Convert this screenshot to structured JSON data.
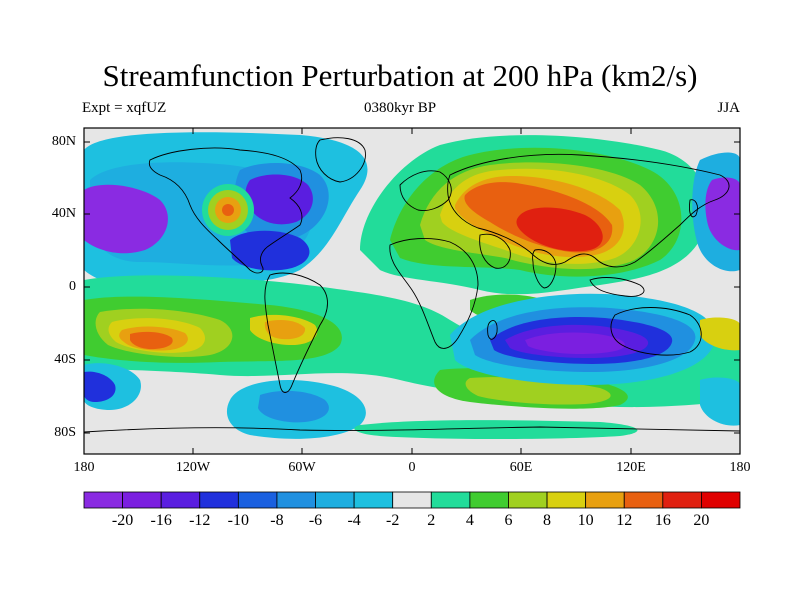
{
  "header": {
    "title": "Streamfunction Perturbation at 200 hPa (km2/s)",
    "left": "Expt = xqfUZ",
    "center": "0380kyr BP",
    "right": "JJA"
  },
  "axes": {
    "y_ticks": [
      "80N",
      "40N",
      "0",
      "40S",
      "80S"
    ],
    "x_ticks": [
      "180",
      "120W",
      "60W",
      "0",
      "60E",
      "120E",
      "180"
    ]
  },
  "colorbar": {
    "labels": [
      "-20",
      "-16",
      "-12",
      "-10",
      "-8",
      "-6",
      "-4",
      "-2",
      "2",
      "4",
      "6",
      "8",
      "10",
      "12",
      "16",
      "20"
    ],
    "colors": [
      "#8a2be2",
      "#7b1fe0",
      "#5a1ee0",
      "#2030dc",
      "#1a60e0",
      "#2090e0",
      "#1eaee0",
      "#1ec0e0",
      "#e6e6e6",
      "#22dc9a",
      "#40cc30",
      "#a0d020",
      "#d8d010",
      "#e8a010",
      "#e86010",
      "#e02010",
      "#e00000"
    ]
  },
  "map": {
    "projection": "cylindrical equidistant",
    "lon_range": [
      -180,
      180
    ],
    "lat_range": [
      -90,
      90
    ],
    "background_color": "#e6e6e6"
  }
}
